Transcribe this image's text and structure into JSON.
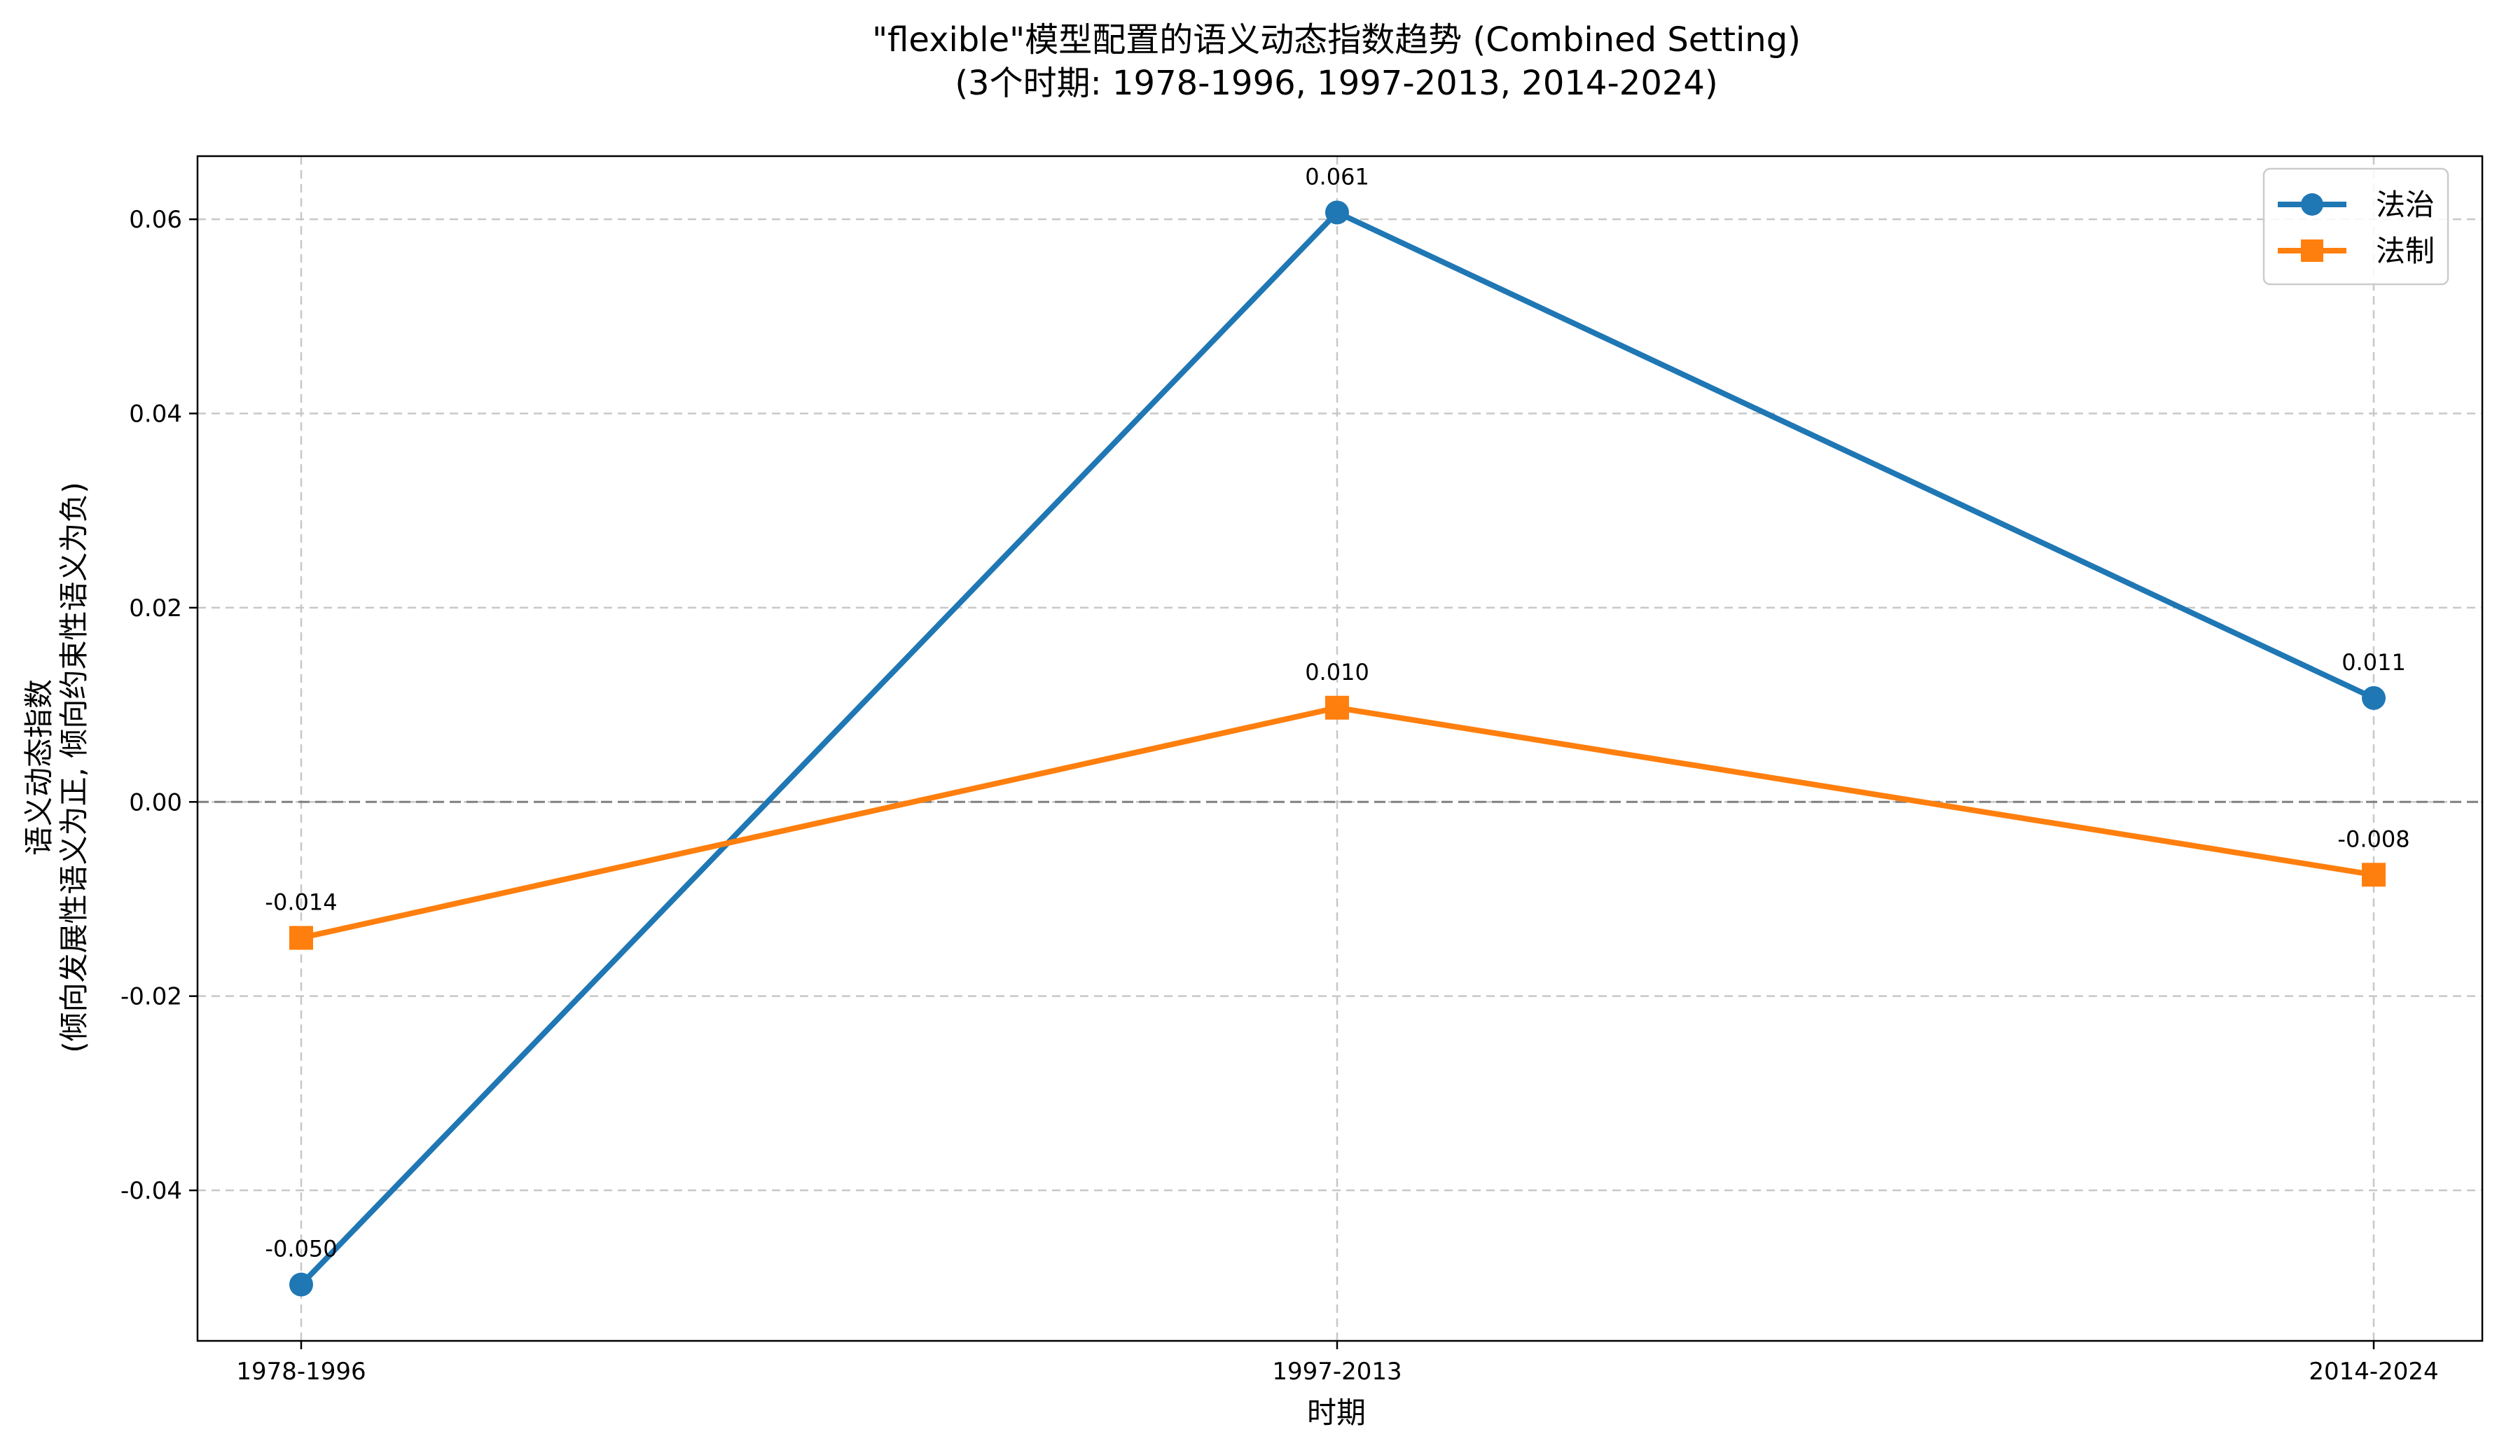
{
  "chart_data": {
    "type": "line",
    "title": "\"flexible\"模型配置的语义动态指数趋势 (Combined Setting)",
    "subtitle": "(3个时期: 1978-1996, 1997-2013, 2014-2024)",
    "xlabel": "时期",
    "ylabel_line1": "语义动态指数",
    "ylabel_line2": "(倾向发展性语义为正, 倾向约束性语义为负)",
    "categories": [
      "1978-1996",
      "1997-2013",
      "2014-2024"
    ],
    "ylim": [
      -0.0555,
      0.0665
    ],
    "yticks": [
      -0.04,
      -0.02,
      0.0,
      0.02,
      0.04,
      0.06
    ],
    "ytick_labels": [
      "-0.04",
      "-0.02",
      "0.00",
      "0.02",
      "0.04",
      "0.06"
    ],
    "grid": true,
    "zero_reference_line": true,
    "legend_position": "top-right",
    "series": [
      {
        "name": "法治",
        "color": "#1f77b4",
        "marker": "circle",
        "values": [
          -0.0497,
          0.0607,
          0.0107
        ],
        "labels": [
          "-0.050",
          "0.061",
          "0.011"
        ]
      },
      {
        "name": "法制",
        "color": "#ff7f0e",
        "marker": "square",
        "values": [
          -0.014,
          0.0097,
          -0.0075
        ],
        "labels": [
          "-0.014",
          "0.010",
          "-0.008"
        ]
      }
    ]
  }
}
